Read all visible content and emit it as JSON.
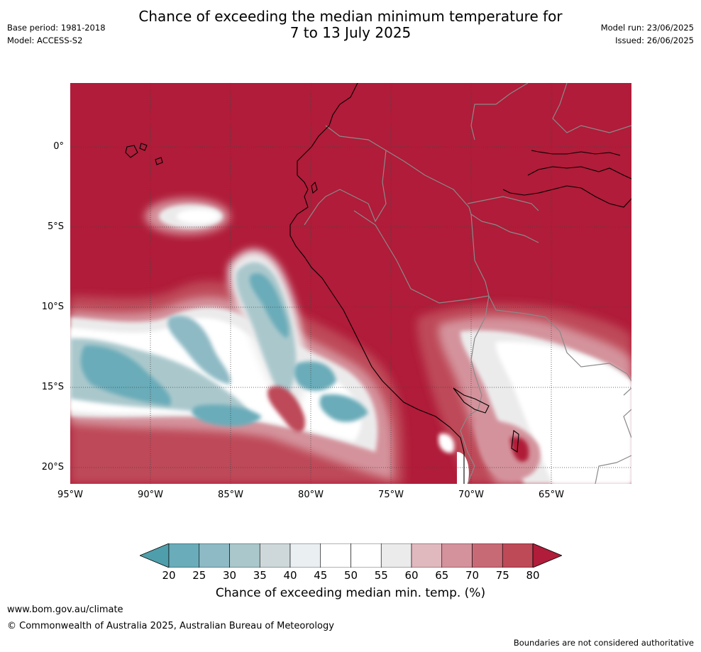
{
  "title_line1": "Chance of exceeding the median minimum temperature for",
  "title_line2": "7 to 13 July 2025",
  "meta_left": {
    "base_period": "Base period: 1981-2018",
    "model": "Model: ACCESS-S2"
  },
  "meta_right": {
    "model_run": "Model run: 23/06/2025",
    "issued": "Issued: 26/06/2025"
  },
  "lat_labels": [
    "0°",
    "5°S",
    "10°S",
    "15°S",
    "20°S"
  ],
  "lon_labels": [
    "95°W",
    "90°W",
    "85°W",
    "80°W",
    "75°W",
    "70°W",
    "65°W"
  ],
  "colorbar": {
    "ticks": [
      "20",
      "25",
      "30",
      "35",
      "40",
      "45",
      "50",
      "55",
      "60",
      "65",
      "70",
      "75",
      "80"
    ],
    "label": "Chance of exceeding median min. temp. (%)",
    "colors": [
      "#4f9eab",
      "#6aacb9",
      "#8ebac5",
      "#aac8cc",
      "#ced8da",
      "#eaf0f2",
      "#ffffff",
      "#ffffff",
      "#ecebec",
      "#e0b9bf",
      "#d4939c",
      "#c86a76",
      "#be4a58",
      "#b01c39"
    ]
  },
  "footer": {
    "url": "www.bom.gov.au/climate",
    "copyright": "© Commonwealth of Australia 2025, Australian Bureau of Meteorology",
    "disclaimer": "Boundaries are not considered authoritative"
  }
}
